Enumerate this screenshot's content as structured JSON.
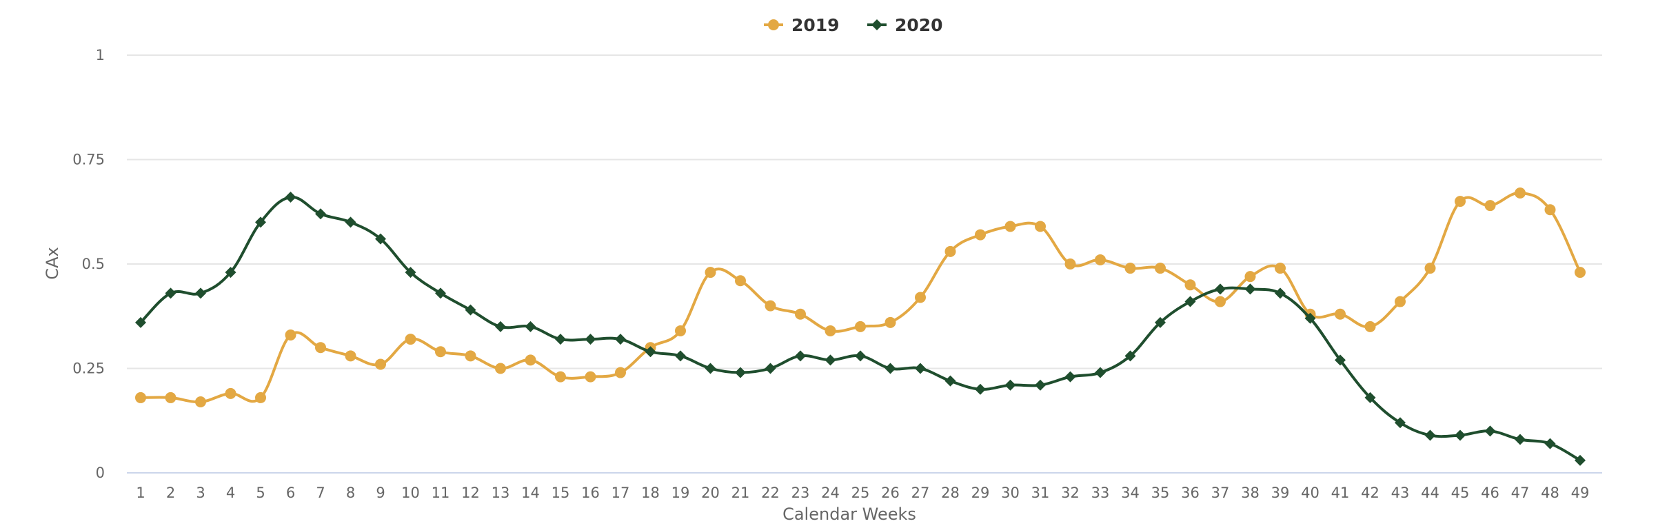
{
  "chart_data": {
    "type": "line",
    "title": "",
    "xlabel": "Calendar Weeks",
    "ylabel": "CAx",
    "ylim": [
      0,
      1
    ],
    "yticks": [
      "0",
      "0.25",
      "0.5",
      "0.75",
      "1"
    ],
    "x": [
      "1",
      "2",
      "3",
      "4",
      "5",
      "6",
      "7",
      "8",
      "9",
      "10",
      "11",
      "12",
      "13",
      "14",
      "15",
      "16",
      "17",
      "18",
      "19",
      "20",
      "21",
      "22",
      "23",
      "24",
      "25",
      "26",
      "27",
      "28",
      "29",
      "30",
      "31",
      "32",
      "33",
      "34",
      "35",
      "36",
      "37",
      "38",
      "39",
      "40",
      "41",
      "42",
      "43",
      "44",
      "45",
      "46",
      "47",
      "48",
      "49"
    ],
    "grid": true,
    "legend": "top-center",
    "series": [
      {
        "name": "2019",
        "color": "#e3a843",
        "marker": "circle",
        "values": [
          0.18,
          0.18,
          0.17,
          0.19,
          0.18,
          0.33,
          0.3,
          0.28,
          0.26,
          0.32,
          0.29,
          0.28,
          0.25,
          0.27,
          0.23,
          0.23,
          0.24,
          0.3,
          0.34,
          0.48,
          0.46,
          0.4,
          0.38,
          0.34,
          0.35,
          0.36,
          0.42,
          0.53,
          0.57,
          0.59,
          0.59,
          0.5,
          0.51,
          0.49,
          0.49,
          0.45,
          0.41,
          0.47,
          0.49,
          0.38,
          0.38,
          0.35,
          0.41,
          0.49,
          0.65,
          0.64,
          0.67,
          0.63,
          0.48
        ]
      },
      {
        "name": "2020",
        "color": "#1f4e2e",
        "marker": "diamond",
        "values": [
          0.36,
          0.43,
          0.43,
          0.48,
          0.6,
          0.66,
          0.62,
          0.6,
          0.56,
          0.48,
          0.43,
          0.39,
          0.35,
          0.35,
          0.32,
          0.32,
          0.32,
          0.29,
          0.28,
          0.25,
          0.24,
          0.25,
          0.28,
          0.27,
          0.28,
          0.25,
          0.25,
          0.22,
          0.2,
          0.21,
          0.21,
          0.23,
          0.24,
          0.28,
          0.36,
          0.41,
          0.44,
          0.44,
          0.43,
          0.37,
          0.27,
          0.18,
          0.12,
          0.09,
          0.09,
          0.1,
          0.08,
          0.07,
          0.03
        ]
      }
    ]
  }
}
